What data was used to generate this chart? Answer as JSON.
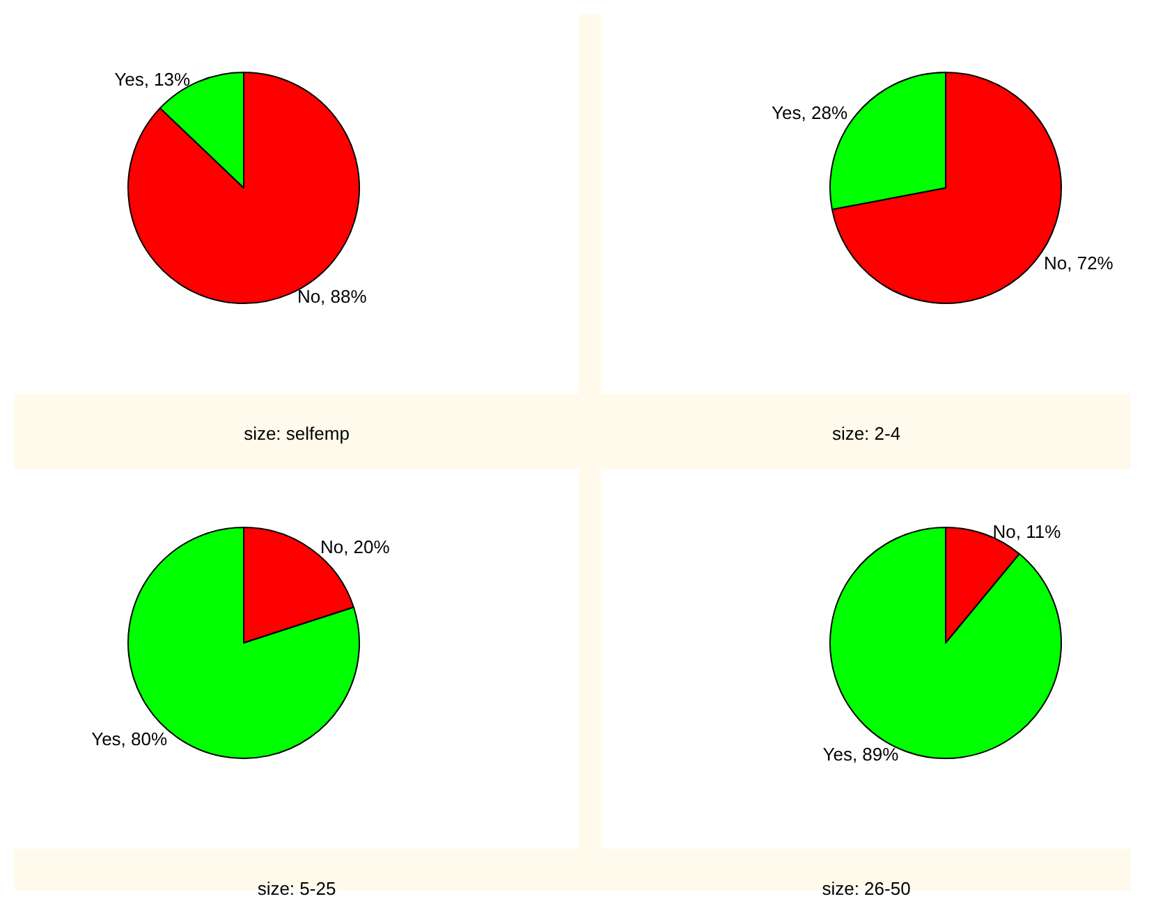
{
  "chart_data": [
    {
      "type": "pie",
      "title": "size: selfemp",
      "categories": [
        "No",
        "Yes"
      ],
      "values": [
        88,
        13
      ],
      "value_labels": [
        "88%",
        "13%"
      ],
      "colors": [
        "#ff0000",
        "#00ff00"
      ]
    },
    {
      "type": "pie",
      "title": "size: 2-4",
      "categories": [
        "No",
        "Yes"
      ],
      "values": [
        72,
        28
      ],
      "value_labels": [
        "72%",
        "28%"
      ],
      "colors": [
        "#ff0000",
        "#00ff00"
      ]
    },
    {
      "type": "pie",
      "title": "size: 5-25",
      "categories": [
        "No",
        "Yes"
      ],
      "values": [
        20,
        80
      ],
      "value_labels": [
        "20%",
        "80%"
      ],
      "colors": [
        "#ff0000",
        "#00ff00"
      ]
    },
    {
      "type": "pie",
      "title": "size: 26-50",
      "categories": [
        "No",
        "Yes"
      ],
      "values": [
        11,
        89
      ],
      "value_labels": [
        "11%",
        "89%"
      ],
      "colors": [
        "#ff0000",
        "#00ff00"
      ]
    }
  ]
}
